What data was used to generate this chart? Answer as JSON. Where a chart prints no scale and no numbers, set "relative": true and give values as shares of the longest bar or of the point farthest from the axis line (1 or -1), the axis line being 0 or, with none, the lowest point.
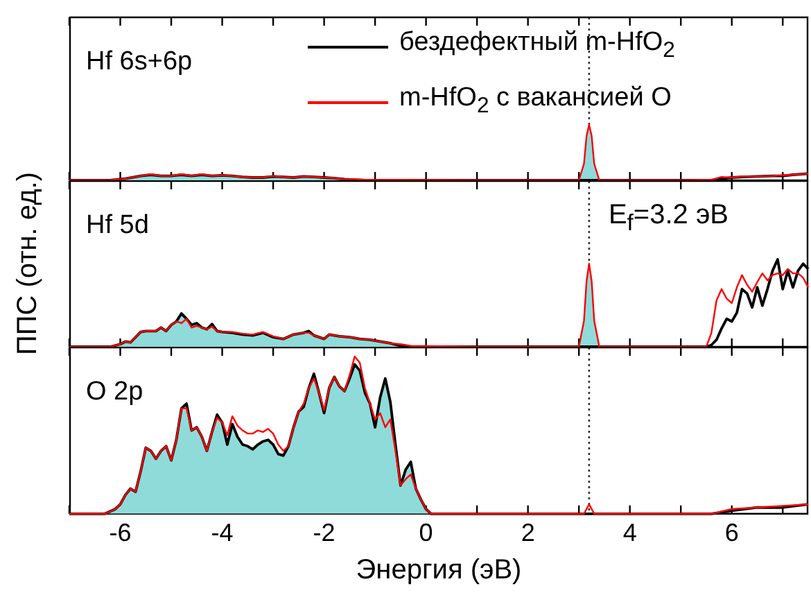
{
  "chart_data": [
    {
      "type": "line",
      "title": "Hf 6s+6p",
      "relative": true,
      "xlim": [
        -7,
        7.5
      ],
      "xticks": [
        {
          "value": -7,
          "label": null
        },
        -6,
        {
          "value": -5,
          "label": null
        },
        -4,
        {
          "value": -3,
          "label": null
        },
        -2,
        {
          "value": -1,
          "label": null
        },
        0,
        {
          "value": 1,
          "label": null
        },
        2,
        {
          "value": 3,
          "label": null
        },
        4,
        {
          "value": 5,
          "label": null
        },
        6,
        {
          "value": 7,
          "label": null
        }
      ],
      "tick_labels": false,
      "legend": "top",
      "ref_lines": [
        {
          "axis": "x",
          "value": 3.2,
          "color": "#333333",
          "line_style": "dotted"
        }
      ],
      "x": [
        -7,
        -6.2,
        -5.9,
        -5.6,
        -5.4,
        -5.2,
        -5.0,
        -4.8,
        -4.6,
        -4.4,
        -4.2,
        -4.0,
        -3.8,
        -3.6,
        -3.4,
        -3.2,
        -3.0,
        -2.8,
        -2.6,
        -2.4,
        -2.2,
        -2.0,
        -1.8,
        -1.6,
        -1.4,
        -1.2,
        1,
        3.0,
        3.1,
        3.15,
        3.2,
        3.25,
        3.3,
        3.4,
        5,
        5.6,
        5.8,
        6.0,
        6.2,
        6.5,
        6.8,
        7.0,
        7.2,
        7.5
      ],
      "series": [
        {
          "type": "area",
          "color": "#8fdbd9",
          "x": [
            -7,
            -6.2,
            -5.9,
            -5.6,
            -5.4,
            -5.2,
            -5.0,
            -4.8,
            -4.6,
            -4.4,
            -4.2,
            -4.0,
            -3.8,
            -3.6,
            -3.4,
            -3.2,
            -3.0,
            -2.8,
            -2.6,
            -2.4,
            -2.2,
            -2.0,
            -1.8,
            -1.6,
            -1.4,
            -1.2,
            1,
            3.0,
            3.1,
            3.15,
            3.2,
            3.25,
            3.3,
            3.4
          ],
          "values": [
            0,
            0,
            0.03,
            0.08,
            0.1,
            0.08,
            0.08,
            0.1,
            0.08,
            0.1,
            0.08,
            0.09,
            0.08,
            0.06,
            0.05,
            0.05,
            0.07,
            0.06,
            0.05,
            0.07,
            0.06,
            0.05,
            0.04,
            0.02,
            0.01,
            0,
            null,
            0,
            0.3,
            0.8,
            1,
            0.8,
            0.3,
            0
          ]
        },
        {
          "type": "line",
          "name": "бездефектный m-HfO$_{2}$",
          "color": "#000000",
          "values": [
            0,
            0,
            0.03,
            0.08,
            0.1,
            0.08,
            0.08,
            0.1,
            0.08,
            0.1,
            0.08,
            0.09,
            0.08,
            0.06,
            0.05,
            0.05,
            0.07,
            0.06,
            0.05,
            0.07,
            0.06,
            0.05,
            0.04,
            0.02,
            0.01,
            0,
            0,
            0,
            0,
            0,
            0,
            0,
            0,
            0,
            0,
            0,
            0.03,
            0.05,
            0.06,
            0.07,
            0.08,
            0.08,
            0.1,
            0.12
          ]
        },
        {
          "type": "line",
          "name": "m-HfO$_{2}$ с вакансией O",
          "color": "#ff0000",
          "values": [
            0,
            0,
            0.03,
            0.08,
            0.11,
            0.08,
            0.08,
            0.11,
            0.08,
            0.11,
            0.08,
            0.09,
            0.08,
            0.06,
            0.05,
            0.05,
            0.08,
            0.06,
            0.05,
            0.07,
            0.06,
            0.05,
            0.04,
            0.02,
            0.02,
            0.01,
            0,
            0,
            0.3,
            0.8,
            1,
            0.8,
            0.3,
            0,
            0,
            0.01,
            0.06,
            0.05,
            0.07,
            0.07,
            0.08,
            0.09,
            0.1,
            0.12
          ]
        }
      ]
    },
    {
      "type": "line",
      "title": "Hf 5d",
      "ylabel": "ППС (отн. ед.)",
      "relative": true,
      "xlim": [
        -7,
        7.5
      ],
      "xticks": [
        {
          "value": -7,
          "label": null
        },
        -6,
        {
          "value": -5,
          "label": null
        },
        -4,
        {
          "value": -3,
          "label": null
        },
        -2,
        {
          "value": -1,
          "label": null
        },
        0,
        {
          "value": 1,
          "label": null
        },
        2,
        {
          "value": 3,
          "label": null
        },
        4,
        {
          "value": 5,
          "label": null
        },
        6,
        {
          "value": 7,
          "label": null
        }
      ],
      "tick_labels": false,
      "ref_lines": [
        {
          "axis": "x",
          "value": 3.2,
          "color": "#333333",
          "line_style": "dotted",
          "label": "E$_{f}$=3.2 эВ"
        }
      ],
      "x": [
        -7,
        -6.2,
        -6.0,
        -5.9,
        -5.8,
        -5.6,
        -5.5,
        -5.3,
        -5.2,
        -5.1,
        -5.0,
        -4.9,
        -4.8,
        -4.7,
        -4.6,
        -4.5,
        -4.4,
        -4.3,
        -4.2,
        -4.1,
        -4.0,
        -3.8,
        -3.6,
        -3.4,
        -3.2,
        -3.0,
        -2.8,
        -2.6,
        -2.4,
        -2.3,
        -2.2,
        -2.0,
        -1.9,
        -1.7,
        -1.5,
        -1.3,
        -1.1,
        -0.9,
        -0.7,
        -0.5,
        -0.3,
        1,
        3.0,
        3.1,
        3.15,
        3.2,
        3.25,
        3.3,
        3.4,
        5,
        5.5,
        5.6,
        5.7,
        5.8,
        5.9,
        6.0,
        6.1,
        6.2,
        6.3,
        6.4,
        6.5,
        6.6,
        6.7,
        6.8,
        6.9,
        7.0,
        7.1,
        7.2,
        7.3,
        7.4,
        7.5
      ],
      "series": [
        {
          "type": "area",
          "color": "#8fdbd9",
          "x": [
            -7,
            -6.2,
            -6.0,
            -5.9,
            -5.8,
            -5.6,
            -5.5,
            -5.3,
            -5.2,
            -5.1,
            -5.0,
            -4.9,
            -4.8,
            -4.7,
            -4.6,
            -4.5,
            -4.4,
            -4.3,
            -4.2,
            -4.1,
            -4.0,
            -3.8,
            -3.6,
            -3.4,
            -3.2,
            -3.0,
            -2.8,
            -2.6,
            -2.4,
            -2.3,
            -2.2,
            -2.0,
            -1.9,
            -1.7,
            -1.5,
            -1.3,
            -1.1,
            -0.9,
            -0.7,
            -0.5,
            -0.3,
            1,
            3.0,
            3.1,
            3.15,
            3.2,
            3.25,
            3.3,
            3.4
          ],
          "values": [
            0,
            0,
            0.03,
            0.06,
            0.05,
            0.17,
            0.18,
            0.18,
            0.22,
            0.18,
            0.25,
            0.29,
            0.38,
            0.32,
            0.25,
            0.27,
            0.22,
            0.2,
            0.26,
            0.18,
            0.17,
            0.16,
            0.14,
            0.13,
            0.16,
            0.11,
            0.09,
            0.14,
            0.16,
            0.18,
            0.13,
            0.09,
            0.14,
            0.12,
            0.11,
            0.09,
            0.08,
            0.06,
            0.04,
            0.01,
            0,
            null,
            0,
            0.3,
            0.75,
            0.95,
            0.75,
            0.3,
            0
          ]
        },
        {
          "type": "line",
          "color": "#000000",
          "values": [
            0,
            0,
            0.03,
            0.06,
            0.05,
            0.17,
            0.18,
            0.18,
            0.22,
            0.18,
            0.25,
            0.29,
            0.38,
            0.32,
            0.25,
            0.27,
            0.22,
            0.2,
            0.26,
            0.18,
            0.17,
            0.16,
            0.14,
            0.13,
            0.16,
            0.11,
            0.09,
            0.14,
            0.16,
            0.18,
            0.13,
            0.09,
            0.14,
            0.12,
            0.11,
            0.09,
            0.08,
            0.06,
            0.04,
            0.01,
            0,
            0,
            0,
            0,
            0,
            0,
            0,
            0,
            0,
            0,
            0,
            0.02,
            0.08,
            0.21,
            0.32,
            0.29,
            0.39,
            0.66,
            0.61,
            0.45,
            0.68,
            0.47,
            0.66,
            0.87,
            1,
            0.66,
            0.87,
            0.68,
            0.87,
            0.95,
            0.89
          ]
        },
        {
          "type": "line",
          "color": "#ff0000",
          "values": [
            0,
            0,
            0.03,
            0.06,
            0.05,
            0.17,
            0.18,
            0.18,
            0.22,
            0.18,
            0.25,
            0.29,
            0.27,
            0.32,
            0.22,
            0.24,
            0.22,
            0.2,
            0.23,
            0.18,
            0.17,
            0.17,
            0.15,
            0.14,
            0.17,
            0.12,
            0.09,
            0.14,
            0.16,
            0.16,
            0.13,
            0.09,
            0.14,
            0.12,
            0.11,
            0.09,
            0.08,
            0.06,
            0.04,
            0.03,
            0.01,
            0,
            0,
            0.3,
            0.75,
            0.95,
            0.75,
            0.3,
            0,
            0,
            0,
            0.16,
            0.53,
            0.66,
            0.55,
            0.5,
            0.68,
            0.82,
            0.71,
            0.63,
            0.74,
            0.84,
            0.76,
            0.82,
            0.84,
            0.82,
            0.89,
            0.84,
            0.84,
            0.79,
            0.68
          ]
        }
      ]
    },
    {
      "type": "line",
      "title": "O 2p",
      "xlabel": "Энергия (эВ)",
      "relative": true,
      "xlim": [
        -7,
        7.5
      ],
      "xticks": [
        {
          "value": -7,
          "label": null
        },
        -6,
        {
          "value": -5,
          "label": null
        },
        -4,
        {
          "value": -3,
          "label": null
        },
        -2,
        {
          "value": -1,
          "label": null
        },
        0,
        {
          "value": 1,
          "label": null
        },
        2,
        {
          "value": 3,
          "label": null
        },
        4,
        {
          "value": 5,
          "label": null
        },
        6,
        {
          "value": 7,
          "label": null
        }
      ],
      "tick_labels": "x",
      "ref_lines": [
        {
          "axis": "x",
          "value": 3.2,
          "color": "#333333",
          "line_style": "dotted"
        }
      ],
      "x": [
        -7,
        -6.3,
        -6.1,
        -6.0,
        -5.9,
        -5.8,
        -5.7,
        -5.6,
        -5.5,
        -5.4,
        -5.3,
        -5.2,
        -5.1,
        -5.0,
        -4.9,
        -4.8,
        -4.7,
        -4.6,
        -4.5,
        -4.4,
        -4.3,
        -4.2,
        -4.1,
        -4.0,
        -3.9,
        -3.8,
        -3.7,
        -3.6,
        -3.5,
        -3.4,
        -3.3,
        -3.2,
        -3.1,
        -3.0,
        -2.9,
        -2.8,
        -2.7,
        -2.6,
        -2.5,
        -2.4,
        -2.3,
        -2.2,
        -2.1,
        -2.0,
        -1.9,
        -1.8,
        -1.7,
        -1.6,
        -1.5,
        -1.4,
        -1.3,
        -1.2,
        -1.1,
        -1.0,
        -0.9,
        -0.8,
        -0.7,
        -0.6,
        -0.5,
        -0.4,
        -0.3,
        -0.2,
        -0.1,
        0,
        0.1,
        1,
        2.9,
        3.1,
        3.2,
        3.3,
        3.5,
        5.6,
        6.0,
        6.5,
        7.0,
        7.5
      ],
      "series": [
        {
          "type": "area",
          "color": "#8fdbd9",
          "x": [
            -7,
            -6.3,
            -6.1,
            -6.0,
            -5.9,
            -5.8,
            -5.7,
            -5.6,
            -5.5,
            -5.4,
            -5.3,
            -5.2,
            -5.1,
            -5.0,
            -4.9,
            -4.8,
            -4.7,
            -4.6,
            -4.5,
            -4.4,
            -4.3,
            -4.2,
            -4.1,
            -4.0,
            -3.9,
            -3.8,
            -3.7,
            -3.6,
            -3.5,
            -3.4,
            -3.3,
            -3.2,
            -3.1,
            -3.0,
            -2.9,
            -2.8,
            -2.7,
            -2.6,
            -2.5,
            -2.4,
            -2.3,
            -2.2,
            -2.1,
            -2.0,
            -1.9,
            -1.8,
            -1.7,
            -1.6,
            -1.5,
            -1.4,
            -1.3,
            -1.2,
            -1.1,
            -1.0,
            -0.9,
            -0.8,
            -0.7,
            -0.6,
            -0.5,
            -0.4,
            -0.3,
            -0.2,
            -0.1,
            0,
            0.1
          ],
          "values": [
            0,
            0,
            0.03,
            0.06,
            0.12,
            0.16,
            0.14,
            0.27,
            0.42,
            0.4,
            0.35,
            0.4,
            0.43,
            0.34,
            0.47,
            0.67,
            0.7,
            0.53,
            0.55,
            0.49,
            0.4,
            0.52,
            0.63,
            0.58,
            0.44,
            0.57,
            0.49,
            0.44,
            0.43,
            0.41,
            0.44,
            0.46,
            0.47,
            0.44,
            0.38,
            0.37,
            0.43,
            0.55,
            0.65,
            0.68,
            0.8,
            0.89,
            0.77,
            0.64,
            0.8,
            0.87,
            0.81,
            0.78,
            0.86,
            0.95,
            0.91,
            0.77,
            0.7,
            0.55,
            0.74,
            0.86,
            0.71,
            0.44,
            0.18,
            0.28,
            0.33,
            0.16,
            0.09,
            0.03,
            0
          ]
        },
        {
          "type": "line",
          "color": "#000000",
          "values": [
            0,
            0,
            0.03,
            0.06,
            0.12,
            0.16,
            0.14,
            0.27,
            0.42,
            0.4,
            0.35,
            0.4,
            0.43,
            0.34,
            0.47,
            0.67,
            0.7,
            0.53,
            0.55,
            0.49,
            0.4,
            0.52,
            0.63,
            0.58,
            0.44,
            0.57,
            0.49,
            0.44,
            0.43,
            0.41,
            0.44,
            0.46,
            0.47,
            0.44,
            0.38,
            0.37,
            0.43,
            0.55,
            0.65,
            0.68,
            0.8,
            0.89,
            0.77,
            0.64,
            0.8,
            0.87,
            0.81,
            0.78,
            0.86,
            0.95,
            0.91,
            0.77,
            0.7,
            0.55,
            0.74,
            0.86,
            0.71,
            0.44,
            0.18,
            0.28,
            0.33,
            0.16,
            0.09,
            0.03,
            0,
            0,
            0,
            0,
            0,
            0,
            0,
            0,
            0.02,
            0.04,
            0.04,
            0.06
          ]
        },
        {
          "type": "line",
          "color": "#ff0000",
          "values": [
            0,
            0,
            0.03,
            0.06,
            0.12,
            0.16,
            0.14,
            0.27,
            0.42,
            0.4,
            0.35,
            0.4,
            0.43,
            0.34,
            0.47,
            0.67,
            0.67,
            0.53,
            0.55,
            0.49,
            0.4,
            0.52,
            0.61,
            0.58,
            0.5,
            0.62,
            0.56,
            0.53,
            0.51,
            0.51,
            0.53,
            0.52,
            0.54,
            0.51,
            0.44,
            0.4,
            0.43,
            0.55,
            0.65,
            0.7,
            0.8,
            0.86,
            0.77,
            0.66,
            0.8,
            0.87,
            0.81,
            0.78,
            0.88,
            1,
            0.96,
            0.8,
            0.7,
            0.6,
            0.64,
            0.55,
            0.6,
            0.4,
            0.18,
            0.22,
            0.25,
            0.16,
            0.09,
            0.03,
            0,
            0,
            0,
            0,
            0.06,
            0,
            0,
            0,
            0.03,
            0.04,
            0.05,
            0.06
          ]
        }
      ]
    }
  ]
}
